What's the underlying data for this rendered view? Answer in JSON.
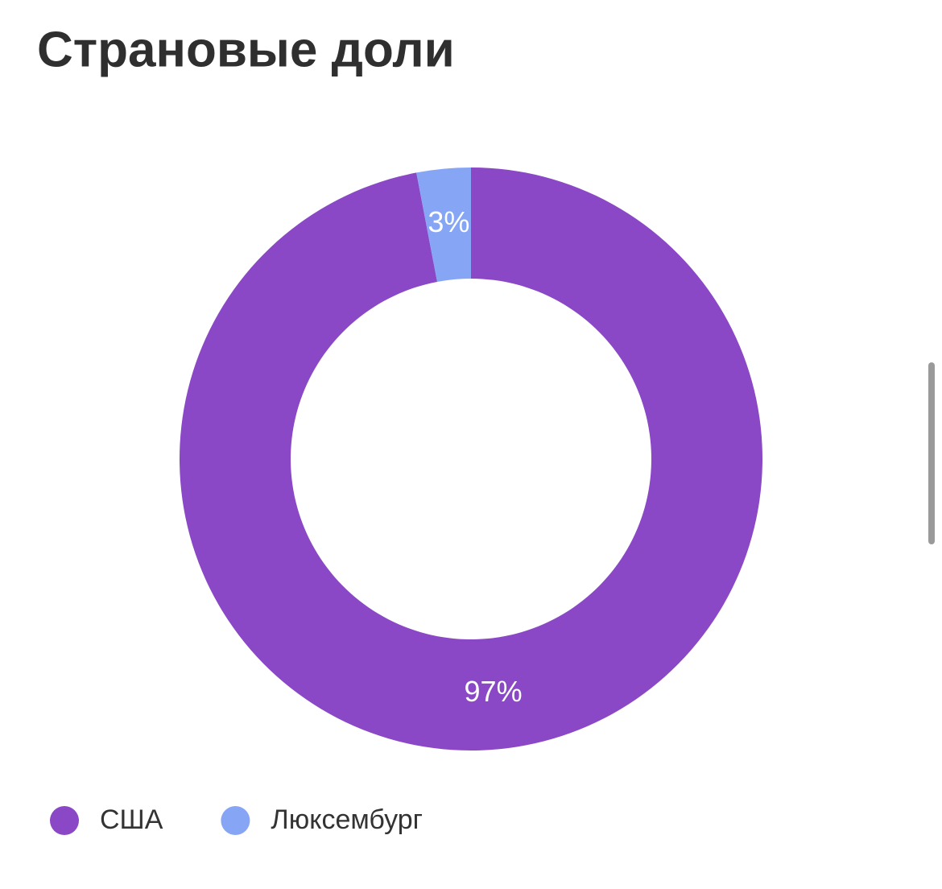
{
  "chart_data": {
    "type": "donut",
    "title": "Страновые доли",
    "categories": [
      "США",
      "Люксембург"
    ],
    "values": [
      97,
      3
    ],
    "value_labels": [
      "97%",
      "3%"
    ],
    "colors": [
      "#8b48c6",
      "#86a6f5"
    ],
    "legend": "bottom-left"
  }
}
